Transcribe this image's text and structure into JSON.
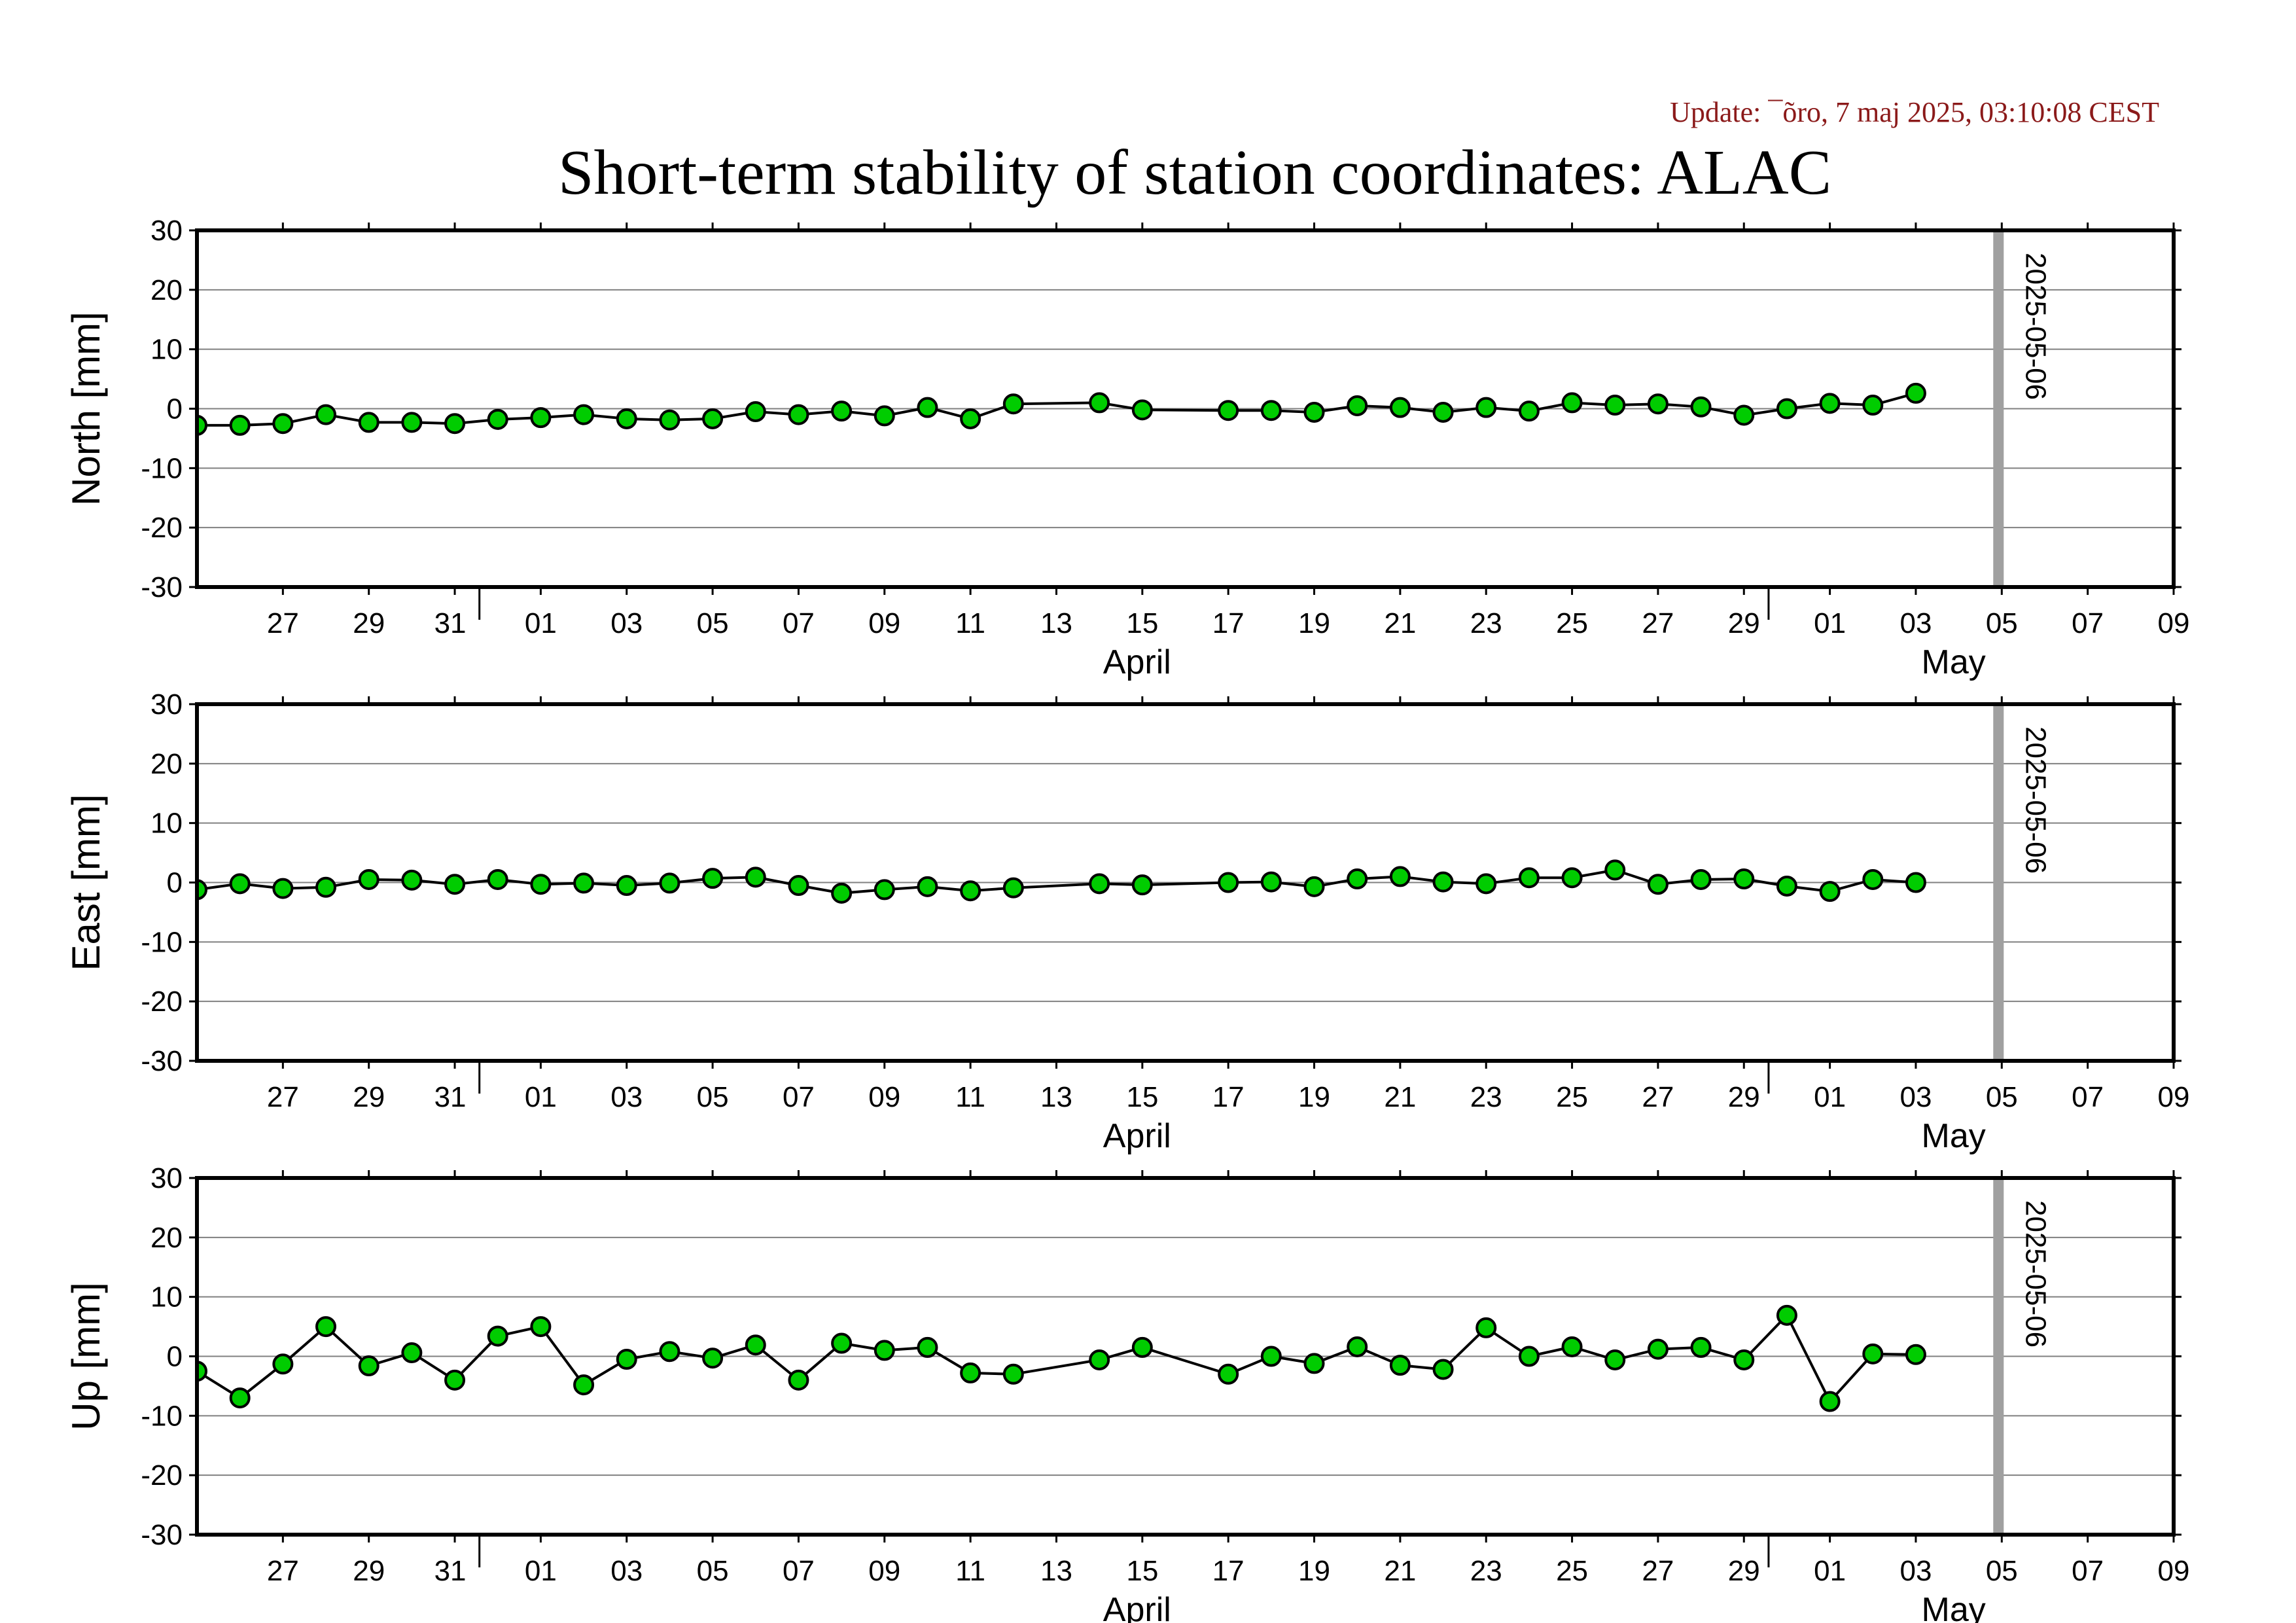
{
  "update_text": "Update: ¯õro, 7 maj 2025, 03:10:08 CEST",
  "title": "Short-term stability of station coordinates: ALAC",
  "colors": {
    "marker_fill": "#00cc00",
    "marker_stroke": "#000000",
    "line": "#000000",
    "grid": "#808080",
    "vertical_marker": "#a0a0a0",
    "update_text": "#8b1a1a"
  },
  "chart_data": [
    {
      "type": "line",
      "panel": "north",
      "ylabel": "North [mm]",
      "ylim": [
        -30,
        30
      ],
      "yticks": [
        30,
        20,
        10,
        0,
        -10,
        -20,
        -30
      ],
      "xlim": [
        "2025-03-25",
        "2025-05-10"
      ],
      "grid": true,
      "marker": "circle",
      "vertical_line": {
        "x": "2025-05-06",
        "label": "2025-05-06"
      },
      "x_tick_labels": [
        "27",
        "29",
        "31",
        "01",
        "03",
        "05",
        "07",
        "09",
        "11",
        "13",
        "15",
        "17",
        "19",
        "21",
        "23",
        "25",
        "27",
        "29",
        "01",
        "03",
        "05",
        "07",
        "09"
      ],
      "month_labels": [
        "April",
        "May"
      ],
      "series": [
        {
          "x": [
            "2025-03-25",
            "2025-03-26",
            "2025-03-27",
            "2025-03-28",
            "2025-03-29",
            "2025-03-30",
            "2025-03-31",
            "2025-04-01",
            "2025-04-02",
            "2025-04-03",
            "2025-04-04",
            "2025-04-05",
            "2025-04-06",
            "2025-04-07",
            "2025-04-08",
            "2025-04-09",
            "2025-04-10",
            "2025-04-11",
            "2025-04-12",
            "2025-04-13",
            "2025-04-15",
            "2025-04-16",
            "2025-04-18",
            "2025-04-19",
            "2025-04-20",
            "2025-04-21",
            "2025-04-22",
            "2025-04-23",
            "2025-04-24",
            "2025-04-25",
            "2025-04-26",
            "2025-04-27",
            "2025-04-28",
            "2025-04-29",
            "2025-04-30",
            "2025-05-01",
            "2025-05-02",
            "2025-05-03",
            "2025-05-04"
          ],
          "y": [
            -2.8,
            -2.8,
            -2.5,
            -1.0,
            -2.3,
            -2.3,
            -2.5,
            -1.8,
            -1.5,
            -1.0,
            -1.7,
            -1.9,
            -1.7,
            -0.5,
            -1.0,
            -0.4,
            -1.2,
            0.2,
            -1.7,
            0.8,
            1.0,
            -0.2,
            -0.3,
            -0.3,
            -0.6,
            0.5,
            0.2,
            -0.6,
            0.2,
            -0.4,
            1.0,
            0.6,
            0.8,
            0.3,
            -1.1,
            0.0,
            0.9,
            0.6,
            2.6
          ]
        }
      ]
    },
    {
      "type": "line",
      "panel": "east",
      "ylabel": "East [mm]",
      "ylim": [
        -30,
        30
      ],
      "yticks": [
        30,
        20,
        10,
        0,
        -10,
        -20,
        -30
      ],
      "xlim": [
        "2025-03-25",
        "2025-05-10"
      ],
      "grid": true,
      "marker": "circle",
      "vertical_line": {
        "x": "2025-05-06",
        "label": "2025-05-06"
      },
      "x_tick_labels": [
        "27",
        "29",
        "31",
        "01",
        "03",
        "05",
        "07",
        "09",
        "11",
        "13",
        "15",
        "17",
        "19",
        "21",
        "23",
        "25",
        "27",
        "29",
        "01",
        "03",
        "05",
        "07",
        "09"
      ],
      "month_labels": [
        "April",
        "May"
      ],
      "series": [
        {
          "x": [
            "2025-03-25",
            "2025-03-26",
            "2025-03-27",
            "2025-03-28",
            "2025-03-29",
            "2025-03-30",
            "2025-03-31",
            "2025-04-01",
            "2025-04-02",
            "2025-04-03",
            "2025-04-04",
            "2025-04-05",
            "2025-04-06",
            "2025-04-07",
            "2025-04-08",
            "2025-04-09",
            "2025-04-10",
            "2025-04-11",
            "2025-04-12",
            "2025-04-13",
            "2025-04-15",
            "2025-04-16",
            "2025-04-18",
            "2025-04-19",
            "2025-04-20",
            "2025-04-21",
            "2025-04-22",
            "2025-04-23",
            "2025-04-24",
            "2025-04-25",
            "2025-04-26",
            "2025-04-27",
            "2025-04-28",
            "2025-04-29",
            "2025-04-30",
            "2025-05-01",
            "2025-05-02",
            "2025-05-03",
            "2025-05-04"
          ],
          "y": [
            -1.2,
            -0.2,
            -1.0,
            -0.8,
            0.5,
            0.4,
            -0.3,
            0.5,
            -0.3,
            -0.1,
            -0.5,
            -0.1,
            0.7,
            0.9,
            -0.5,
            -1.8,
            -1.2,
            -0.7,
            -1.4,
            -0.9,
            -0.2,
            -0.4,
            0.0,
            0.1,
            -0.7,
            0.6,
            1.0,
            0.1,
            -0.2,
            0.8,
            0.8,
            2.1,
            -0.3,
            0.5,
            0.6,
            -0.6,
            -1.5,
            0.5,
            0.0
          ]
        }
      ]
    },
    {
      "type": "line",
      "panel": "up",
      "ylabel": "Up [mm]",
      "ylim": [
        -30,
        30
      ],
      "yticks": [
        30,
        20,
        10,
        0,
        -10,
        -20,
        -30
      ],
      "xlim": [
        "2025-03-25",
        "2025-05-10"
      ],
      "grid": true,
      "marker": "circle",
      "vertical_line": {
        "x": "2025-05-06",
        "label": "2025-05-06"
      },
      "x_tick_labels": [
        "27",
        "29",
        "31",
        "01",
        "03",
        "05",
        "07",
        "09",
        "11",
        "13",
        "15",
        "17",
        "19",
        "21",
        "23",
        "25",
        "27",
        "29",
        "01",
        "03",
        "05",
        "07",
        "09"
      ],
      "month_labels": [
        "April",
        "May"
      ],
      "series": [
        {
          "x": [
            "2025-03-25",
            "2025-03-26",
            "2025-03-27",
            "2025-03-28",
            "2025-03-29",
            "2025-03-30",
            "2025-03-31",
            "2025-04-01",
            "2025-04-02",
            "2025-04-03",
            "2025-04-04",
            "2025-04-05",
            "2025-04-06",
            "2025-04-07",
            "2025-04-08",
            "2025-04-09",
            "2025-04-10",
            "2025-04-11",
            "2025-04-12",
            "2025-04-13",
            "2025-04-15",
            "2025-04-16",
            "2025-04-18",
            "2025-04-19",
            "2025-04-20",
            "2025-04-21",
            "2025-04-22",
            "2025-04-23",
            "2025-04-24",
            "2025-04-25",
            "2025-04-26",
            "2025-04-27",
            "2025-04-28",
            "2025-04-29",
            "2025-04-30",
            "2025-05-01",
            "2025-05-02",
            "2025-05-03",
            "2025-05-04"
          ],
          "y": [
            -2.5,
            -7.0,
            -1.3,
            5.0,
            -1.6,
            0.6,
            -4.0,
            3.4,
            5.0,
            -4.8,
            -0.5,
            0.8,
            -0.3,
            1.9,
            -4.0,
            2.2,
            1.0,
            1.5,
            -2.8,
            -3.0,
            -0.6,
            1.5,
            -3.0,
            0.0,
            -1.2,
            1.6,
            -1.5,
            -2.2,
            4.8,
            0.0,
            1.6,
            -0.6,
            1.2,
            1.5,
            -0.6,
            6.9,
            -7.6,
            0.4,
            0.3
          ]
        }
      ]
    }
  ]
}
